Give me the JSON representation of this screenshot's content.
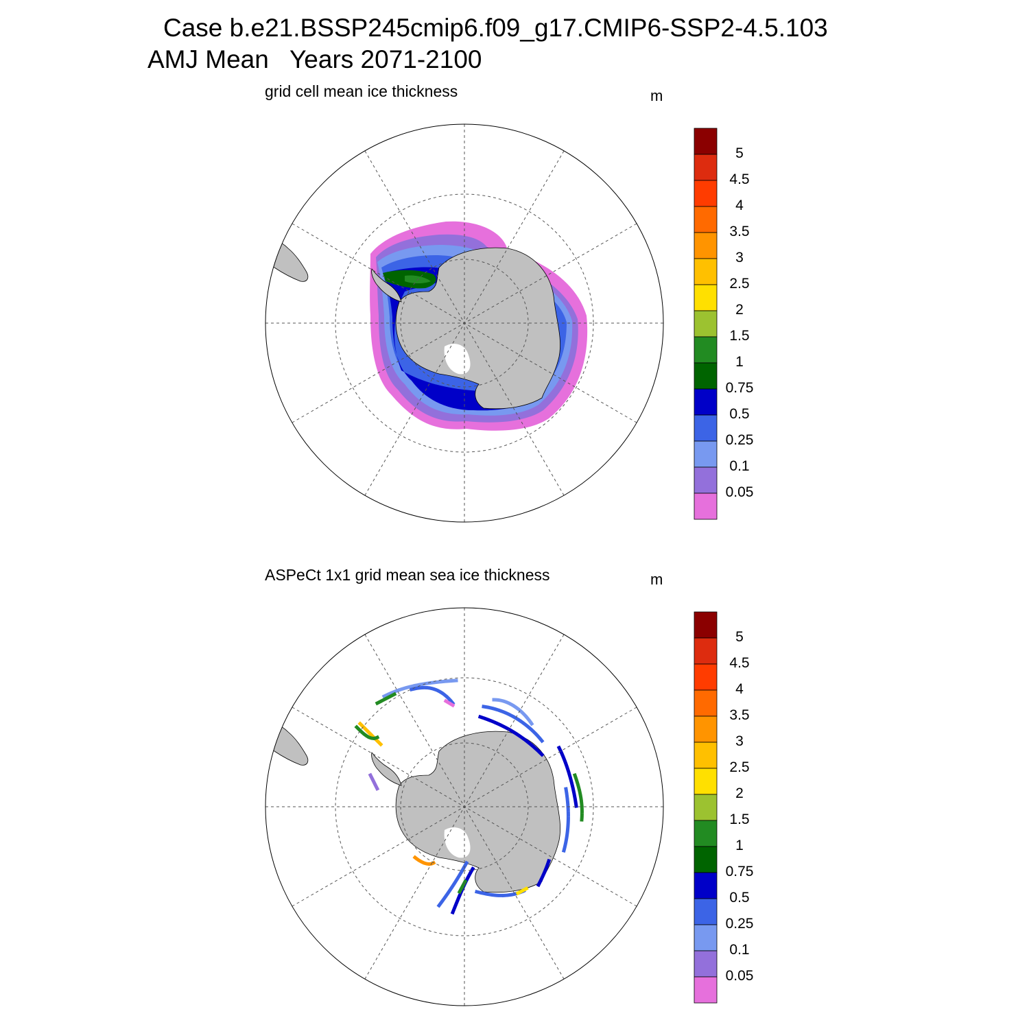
{
  "header": {
    "case_line": "Case b.e21.BSSP245cmip6.f09_g17.CMIP6-SSP2-4.5.103",
    "period_line": "AMJ Mean   Years 2071-2100"
  },
  "panels": [
    {
      "title": "grid cell mean ice thickness",
      "units": "m"
    },
    {
      "title": "ASPeCt 1x1 grid mean sea ice thickness",
      "units": "m"
    }
  ],
  "colorbar": {
    "labels": [
      "5",
      "4.5",
      "4",
      "3.5",
      "3",
      "2.5",
      "2",
      "1.5",
      "1",
      "0.75",
      "0.5",
      "0.25",
      "0.1",
      "0.05"
    ],
    "colors": [
      "#8b0000",
      "#dd2c0f",
      "#ff3c00",
      "#ff6a00",
      "#ff9400",
      "#ffc000",
      "#ffe000",
      "#9cc230",
      "#228b22",
      "#006400",
      "#0000c8",
      "#3c64e6",
      "#7899f0",
      "#9370db",
      "#e670dc"
    ]
  },
  "map_colors": {
    "land": "#c0c0c0",
    "coast": "#000000",
    "grid": "#555555"
  }
}
